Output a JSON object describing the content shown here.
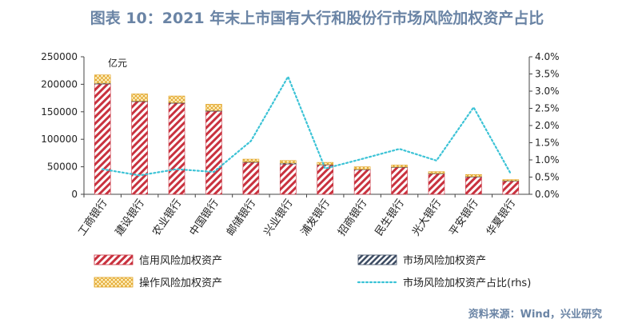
{
  "title": "图表 10：2021 年末上市国有大行和股份行市场风险加权资产占比",
  "source": "资料来源：Wind，兴业研究",
  "colors": {
    "credit": "#c9323f",
    "market": "#3d4c63",
    "operational": "#e0a020",
    "ratio_line": "#3cc3d6",
    "title": "#6a84a5"
  },
  "chart_data": {
    "type": "bar",
    "stacked": true,
    "unit_label": "亿元",
    "categories": [
      "工商银行",
      "建设银行",
      "农业银行",
      "中国银行",
      "邮储银行",
      "兴业银行",
      "浦发银行",
      "招商银行",
      "民生银行",
      "光大银行",
      "平安银行",
      "华夏银行"
    ],
    "series": [
      {
        "name": "信用风险加权资产",
        "axis": "left",
        "values": [
          200500,
          168500,
          165500,
          151000,
          58000,
          55000,
          53500,
          45000,
          49000,
          37500,
          31500,
          24500
        ]
      },
      {
        "name": "市场风险加权资产",
        "axis": "left",
        "values": [
          1500,
          1000,
          1200,
          1200,
          900,
          1800,
          500,
          500,
          600,
          400,
          800,
          150
        ]
      },
      {
        "name": "操作风险加权资产",
        "axis": "left",
        "values": [
          15000,
          13000,
          12000,
          11500,
          5000,
          4500,
          4000,
          4500,
          3500,
          3200,
          3700,
          2000
        ]
      },
      {
        "name": "市场风险加权资产占比(rhs)",
        "axis": "right",
        "type": "line",
        "values": [
          0.0073,
          0.0055,
          0.0073,
          0.0065,
          0.0155,
          0.0342,
          0.0075,
          0.0103,
          0.0132,
          0.0098,
          0.0253,
          0.006
        ]
      }
    ],
    "yaxis_left": {
      "min": 0,
      "max": 250000,
      "ticks": [
        "0",
        "50000",
        "100000",
        "150000",
        "200000",
        "250000"
      ]
    },
    "yaxis_right": {
      "min": 0,
      "max": 0.04,
      "ticks": [
        "0.0%",
        "0.5%",
        "1.0%",
        "1.5%",
        "2.0%",
        "2.5%",
        "3.0%",
        "3.5%",
        "4.0%"
      ]
    },
    "legend": [
      {
        "label": "信用风险加权资产",
        "kind": "credit"
      },
      {
        "label": "市场风险加权资产",
        "kind": "market"
      },
      {
        "label": "操作风险加权资产",
        "kind": "operational"
      },
      {
        "label": "市场风险加权资产占比(rhs)",
        "kind": "line"
      }
    ]
  }
}
